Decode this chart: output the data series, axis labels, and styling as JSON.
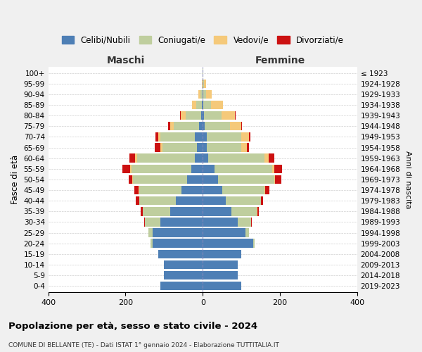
{
  "age_groups": [
    "0-4",
    "5-9",
    "10-14",
    "15-19",
    "20-24",
    "25-29",
    "30-34",
    "35-39",
    "40-44",
    "45-49",
    "50-54",
    "55-59",
    "60-64",
    "65-69",
    "70-74",
    "75-79",
    "80-84",
    "85-89",
    "90-94",
    "95-99",
    "100+"
  ],
  "birth_years": [
    "2019-2023",
    "2014-2018",
    "2009-2013",
    "2004-2008",
    "1999-2003",
    "1994-1998",
    "1989-1993",
    "1984-1988",
    "1979-1983",
    "1974-1978",
    "1969-1973",
    "1964-1968",
    "1959-1963",
    "1954-1958",
    "1949-1953",
    "1944-1948",
    "1939-1943",
    "1934-1938",
    "1929-1933",
    "1924-1928",
    "≤ 1923"
  ],
  "colors": {
    "celibi": "#4e7fb5",
    "coniugati": "#bfce9e",
    "vedovi": "#f5c97a",
    "divorziati": "#cc1111"
  },
  "maschi": {
    "celibi": [
      110,
      100,
      100,
      115,
      130,
      130,
      110,
      85,
      70,
      55,
      40,
      30,
      20,
      15,
      20,
      10,
      5,
      2,
      1,
      0,
      0
    ],
    "coniugati": [
      0,
      0,
      0,
      0,
      5,
      10,
      40,
      70,
      95,
      110,
      140,
      155,
      150,
      90,
      90,
      65,
      40,
      15,
      5,
      1,
      0
    ],
    "vedovi": [
      0,
      0,
      0,
      0,
      0,
      0,
      0,
      0,
      0,
      2,
      2,
      3,
      5,
      5,
      5,
      10,
      12,
      10,
      5,
      2,
      0
    ],
    "divorziati": [
      0,
      0,
      0,
      0,
      0,
      0,
      2,
      5,
      8,
      10,
      10,
      20,
      15,
      15,
      8,
      5,
      2,
      0,
      0,
      0,
      0
    ]
  },
  "femmine": {
    "celibi": [
      100,
      90,
      90,
      100,
      130,
      110,
      90,
      75,
      60,
      50,
      40,
      30,
      15,
      10,
      10,
      5,
      3,
      2,
      1,
      0,
      0
    ],
    "coniugati": [
      0,
      0,
      0,
      0,
      5,
      10,
      35,
      65,
      90,
      110,
      145,
      150,
      145,
      90,
      90,
      65,
      45,
      20,
      8,
      3,
      1
    ],
    "vedovi": [
      0,
      0,
      0,
      0,
      0,
      0,
      0,
      1,
      1,
      2,
      3,
      5,
      10,
      15,
      20,
      30,
      35,
      30,
      15,
      5,
      1
    ],
    "divorziati": [
      0,
      0,
      0,
      0,
      0,
      0,
      2,
      5,
      5,
      10,
      15,
      20,
      15,
      5,
      3,
      2,
      2,
      0,
      0,
      0,
      0
    ]
  },
  "title": "Popolazione per età, sesso e stato civile - 2024",
  "subtitle": "COMUNE DI BELLANTE (TE) - Dati ISTAT 1° gennaio 2024 - Elaborazione TUTTITALIA.IT",
  "xlabel_maschi": "Maschi",
  "xlabel_femmine": "Femmine",
  "ylabel_left": "Fasce di età",
  "ylabel_right": "Anni di nascita",
  "xlim": 400,
  "bg_color": "#f0f0f0",
  "plot_bg": "#ffffff",
  "legend_labels": [
    "Celibi/Nubili",
    "Coniugati/e",
    "Vedovi/e",
    "Divorziati/e"
  ]
}
